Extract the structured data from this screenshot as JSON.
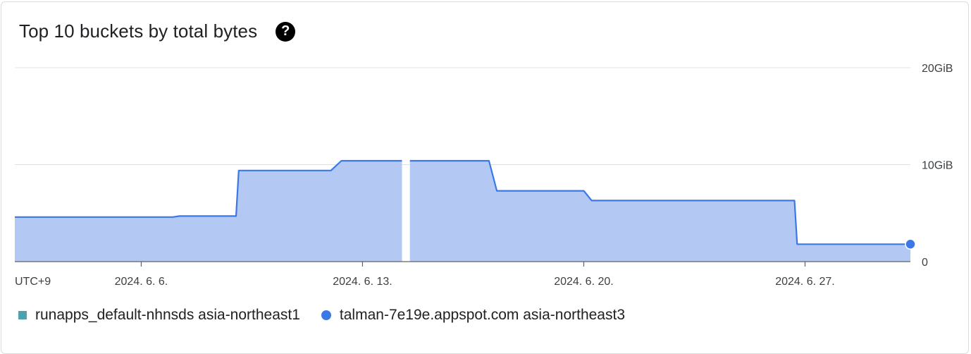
{
  "widget": {
    "title": "Top 10 buckets by total bytes",
    "help_glyph": "?"
  },
  "chart_data": {
    "type": "area",
    "title": "Top 10 buckets by total bytes",
    "timezone_label": "UTC+9",
    "x_tick_labels": [
      "2024. 6. 6.",
      "2024. 6. 13.",
      "2024. 6. 20.",
      "2024. 6. 27."
    ],
    "y_tick_labels": [
      "0",
      "10GiB",
      "20GiB"
    ],
    "y_unit": "GiB",
    "ylim": [
      0,
      20
    ],
    "xlim": [
      "2024-06-02T00:00",
      "2024-06-30T08:00"
    ],
    "grid": true,
    "legend_position": "bottom-left",
    "series": [
      {
        "name": "runapps_default-nhnsds asia-northeast1",
        "color": "#4ea1a8",
        "marker": "square",
        "points": []
      },
      {
        "name": "talman-7e19e.appspot.com asia-northeast3",
        "color": "#3b78e7",
        "fill_color": "#b3c9f3",
        "marker": "circle",
        "segments": [
          [
            [
              "2024-06-02T00:00",
              4.6
            ],
            [
              "2024-06-07T00:00",
              4.6
            ],
            [
              "2024-06-07T05:00",
              4.7
            ],
            [
              "2024-06-09T00:00",
              4.7
            ],
            [
              "2024-06-09T02:00",
              9.4
            ],
            [
              "2024-06-12T00:00",
              9.4
            ],
            [
              "2024-06-12T08:00",
              10.4
            ],
            [
              "2024-06-14T06:00",
              10.4
            ]
          ],
          [
            [
              "2024-06-14T12:00",
              10.4
            ],
            [
              "2024-06-17T00:00",
              10.4
            ],
            [
              "2024-06-17T06:00",
              7.3
            ],
            [
              "2024-06-20T00:00",
              7.3
            ],
            [
              "2024-06-20T06:00",
              6.3
            ],
            [
              "2024-06-26T16:00",
              6.3
            ],
            [
              "2024-06-26T18:00",
              1.8
            ],
            [
              "2024-06-30T08:00",
              1.8
            ]
          ]
        ]
      }
    ]
  }
}
